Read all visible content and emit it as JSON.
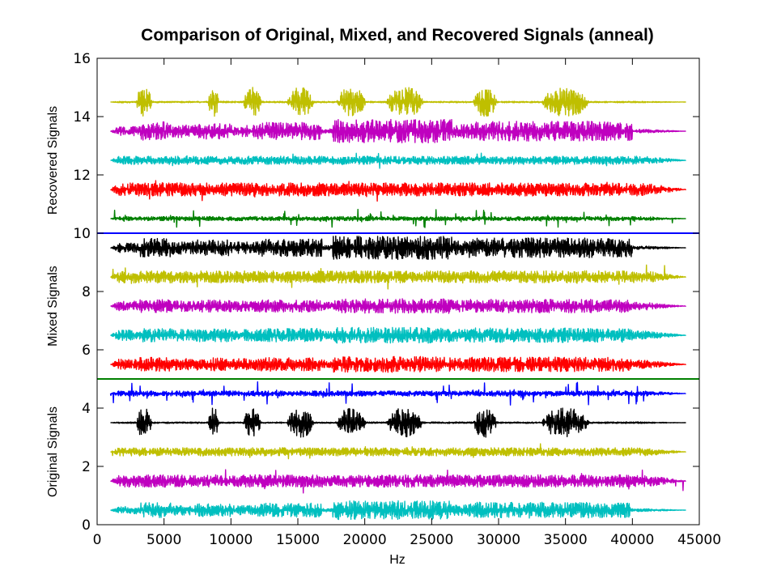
{
  "chart_data": {
    "type": "line",
    "title": "Comparison of Original, Mixed, and Recovered Signals (anneal)",
    "xlabel": "Hz",
    "xlim": [
      0,
      45000
    ],
    "ylim": [
      0,
      16
    ],
    "x_ticks": [
      "0",
      "5000",
      "10000",
      "15000",
      "20000",
      "25000",
      "30000",
      "35000",
      "40000",
      "45000"
    ],
    "y_ticks": [
      "0",
      "2",
      "4",
      "6",
      "8",
      "10",
      "12",
      "14",
      "16"
    ],
    "signal_x_range": [
      1000,
      44000
    ],
    "group_labels": [
      {
        "text": "Original Signals",
        "center": 2.5
      },
      {
        "text": "Mixed Signals",
        "center": 7.5
      },
      {
        "text": "Recovered Signals",
        "center": 12.5
      }
    ],
    "separators": [
      {
        "y": 5,
        "color": "#008000"
      },
      {
        "y": 10,
        "color": "#0000ff"
      }
    ],
    "colors": {
      "cyan": "#00bfbf",
      "magenta": "#bf00bf",
      "olive": "#bfbf00",
      "black": "#000000",
      "blue": "#0000ff",
      "red": "#ff0000",
      "green": "#008000"
    },
    "series": [
      {
        "offset": 0.5,
        "color": "#00bfbf",
        "style": "speech_dense",
        "amplitude": 0.32
      },
      {
        "offset": 1.5,
        "color": "#bf00bf",
        "style": "noise",
        "amplitude": 0.3
      },
      {
        "offset": 2.5,
        "color": "#bfbf00",
        "style": "noise",
        "amplitude": 0.2
      },
      {
        "offset": 3.5,
        "color": "#000000",
        "style": "bursts",
        "amplitude": 0.5
      },
      {
        "offset": 4.5,
        "color": "#0000ff",
        "style": "spiky",
        "amplitude": 0.25
      },
      {
        "offset": 5.5,
        "color": "#ff0000",
        "style": "mixed",
        "amplitude": 0.3
      },
      {
        "offset": 6.5,
        "color": "#00bfbf",
        "style": "mixed",
        "amplitude": 0.3
      },
      {
        "offset": 7.5,
        "color": "#bf00bf",
        "style": "mixed",
        "amplitude": 0.28
      },
      {
        "offset": 8.5,
        "color": "#bfbf00",
        "style": "noise",
        "amplitude": 0.3
      },
      {
        "offset": 9.5,
        "color": "#000000",
        "style": "speech_dense",
        "amplitude": 0.4
      },
      {
        "offset": 10.5,
        "color": "#008000",
        "style": "spiky",
        "amplitude": 0.2
      },
      {
        "offset": 11.5,
        "color": "#ff0000",
        "style": "noise",
        "amplitude": 0.32
      },
      {
        "offset": 12.5,
        "color": "#00bfbf",
        "style": "noise",
        "amplitude": 0.2
      },
      {
        "offset": 13.5,
        "color": "#bf00bf",
        "style": "speech_dense",
        "amplitude": 0.4
      },
      {
        "offset": 14.5,
        "color": "#bfbf00",
        "style": "bursts",
        "amplitude": 0.5
      }
    ]
  }
}
